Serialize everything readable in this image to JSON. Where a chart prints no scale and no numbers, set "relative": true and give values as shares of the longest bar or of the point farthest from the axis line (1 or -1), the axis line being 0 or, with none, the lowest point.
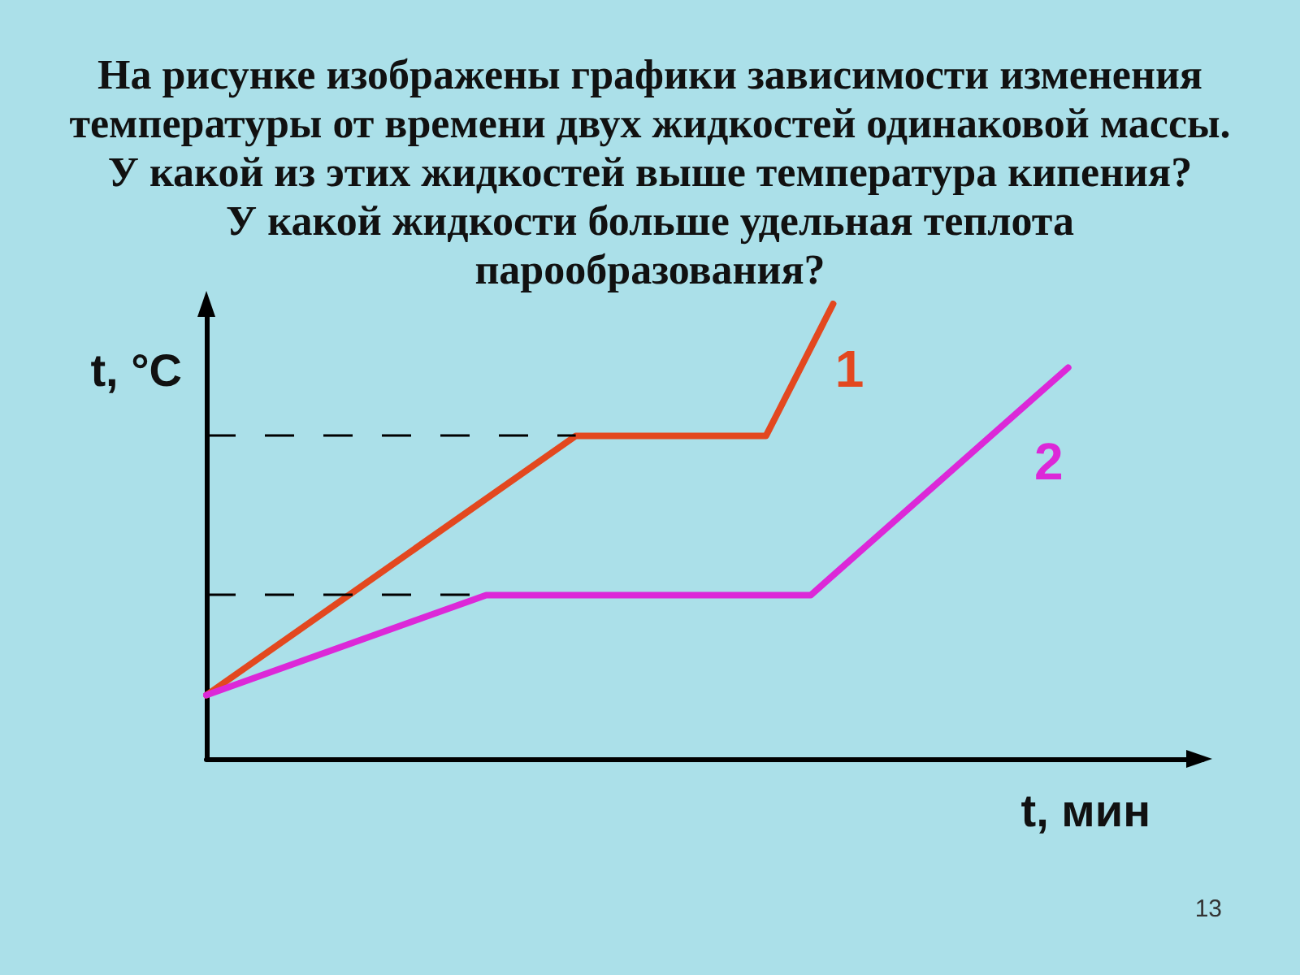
{
  "chart_data": {
    "type": "line",
    "relative": true,
    "title": "На рисунке изображены графики зависимости изменения\nтемпературы от времени двух жидкостей одинаковой массы.\nУ какой из этих жидкостей выше температура кипения?\nУ какой жидкости больше удельная теплота\nпарообразования?",
    "xlabel": "t, мин",
    "ylabel": "t, °C",
    "categories": [
      null,
      null,
      null,
      null,
      null,
      null,
      null,
      null,
      null,
      null,
      null,
      null,
      null,
      null,
      null,
      null,
      null,
      null,
      null,
      null,
      null,
      null,
      null,
      null,
      null,
      null,
      null,
      null,
      null,
      null,
      null,
      null,
      null,
      null,
      null,
      null,
      null,
      null,
      null,
      null,
      null,
      null,
      null,
      null,
      null,
      null,
      null,
      null,
      null,
      null,
      null,
      null,
      null,
      null,
      null,
      null,
      null,
      null,
      null,
      null,
      null,
      null,
      null,
      null,
      null,
      null,
      null,
      null,
      null,
      null,
      null,
      null,
      null,
      null,
      null,
      null,
      null,
      null,
      null,
      null,
      null,
      null,
      null,
      null,
      null,
      null,
      null,
      null,
      null,
      null
    ],
    "series": [
      {
        "name": "1",
        "color": "#e3481f",
        "values": [
          0.14,
          null,
          null,
          null,
          null,
          null,
          null,
          null,
          null,
          null,
          null,
          null,
          null,
          null,
          null,
          null,
          null,
          null,
          null,
          null,
          null,
          null,
          null,
          null,
          null,
          null,
          null,
          null,
          null,
          null,
          null,
          null,
          null,
          0.71,
          null,
          null,
          null,
          null,
          null,
          null,
          null,
          null,
          null,
          null,
          null,
          null,
          null,
          null,
          null,
          null,
          0.71,
          null,
          null,
          null,
          null,
          null,
          1,
          null,
          null,
          null,
          null,
          null,
          null,
          null,
          null,
          null,
          null,
          null,
          null,
          null,
          null,
          null,
          null,
          null,
          null,
          null,
          null,
          null,
          null,
          null,
          null,
          null,
          null,
          null,
          null,
          null,
          null,
          null,
          null,
          null
        ]
      },
      {
        "name": "2",
        "color": "#dc28d8",
        "values": [
          0.14,
          null,
          null,
          null,
          null,
          null,
          null,
          null,
          null,
          null,
          null,
          null,
          null,
          null,
          null,
          null,
          null,
          null,
          null,
          null,
          null,
          null,
          null,
          null,
          null,
          0.36,
          null,
          null,
          null,
          null,
          null,
          null,
          null,
          null,
          null,
          null,
          null,
          null,
          null,
          null,
          null,
          null,
          null,
          null,
          null,
          null,
          null,
          null,
          null,
          null,
          null,
          null,
          null,
          null,
          0.36,
          null,
          null,
          null,
          null,
          null,
          null,
          null,
          null,
          null,
          null,
          null,
          null,
          null,
          null,
          null,
          null,
          null,
          null,
          null,
          null,
          null,
          null,
          0.86,
          null,
          null,
          null,
          null,
          null,
          null,
          null,
          null,
          null,
          null,
          null,
          null
        ]
      }
    ],
    "ref_lines": [
      {
        "axis": "y",
        "value": 0.71,
        "color": "#000000",
        "line_style": "dashed"
      },
      {
        "axis": "y",
        "value": 0.36,
        "color": "#000000",
        "line_style": "dashed"
      }
    ],
    "annotations": [
      "13"
    ],
    "marker": "none",
    "line_style": "solid",
    "grid": false,
    "legend": false
  }
}
